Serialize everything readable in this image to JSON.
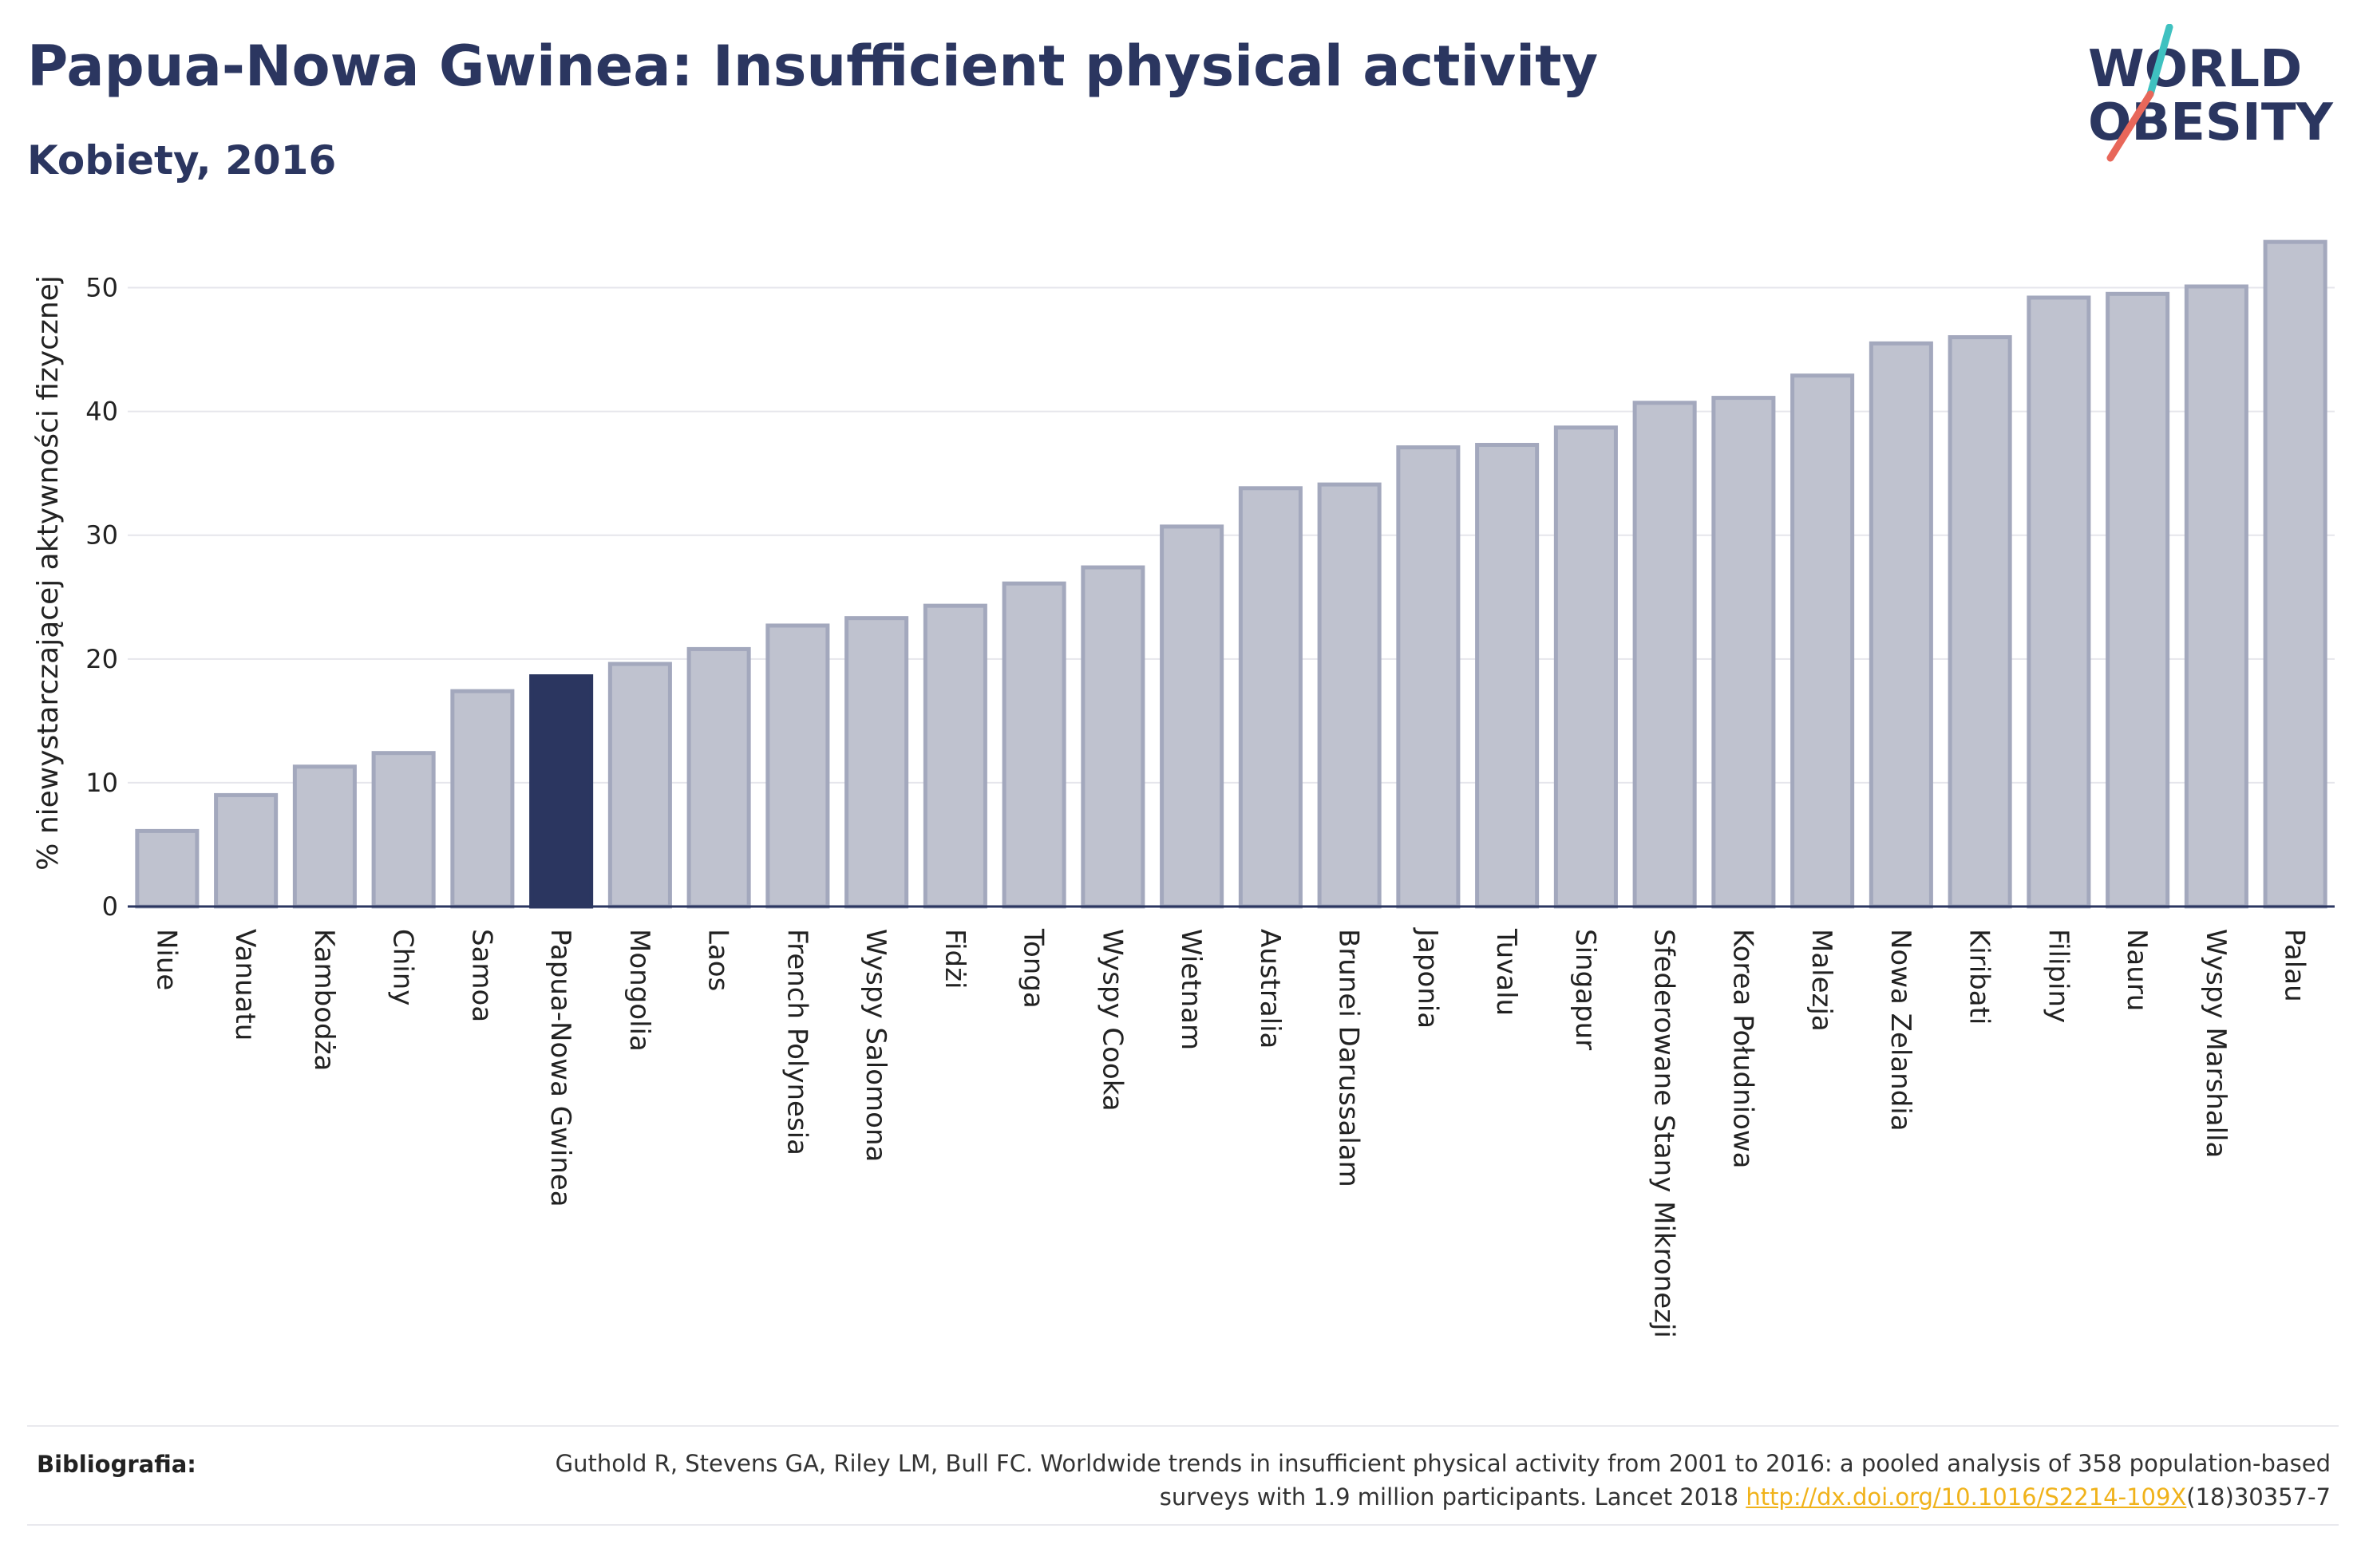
{
  "header": {
    "title": "Papua-Nowa Gwinea: Insufficient physical activity",
    "subtitle": "Kobiety, 2016"
  },
  "logo": {
    "line1": "WORLD",
    "line2": "OBESITY",
    "accent_colors": [
      "#3fc1c0",
      "#e8675a"
    ]
  },
  "chart_data": {
    "type": "bar",
    "ylabel": "% niewystarczającej aktywności fizycznej",
    "xlabel": "",
    "ylim": [
      0,
      55
    ],
    "yticks": [
      0,
      10,
      20,
      30,
      40,
      50
    ],
    "grid": true,
    "highlight": "Papua-Nowa Gwinea",
    "colors": {
      "bar": "#bfc2cf",
      "bar_border": "#a3a8bd",
      "highlight": "#2b3660",
      "axis": "#2b3660",
      "grid": "#e6e6ec"
    },
    "categories": [
      "Niue",
      "Vanuatu",
      "Kambodża",
      "Chiny",
      "Samoa",
      "Papua-Nowa Gwinea",
      "Mongolia",
      "Laos",
      "French Polynesia",
      "Wyspy Salomona",
      "Fidżi",
      "Tonga",
      "Wyspy Cooka",
      "Wietnam",
      "Australia",
      "Brunei Darussalam",
      "Japonia",
      "Tuvalu",
      "Singapur",
      "Sfederowane Stany Mikronezji",
      "Korea Południowa",
      "Malezja",
      "Nowa Zelandia",
      "Kiribati",
      "Filipiny",
      "Nauru",
      "Wyspy Marshalla",
      "Palau"
    ],
    "values": [
      6.1,
      9.0,
      11.3,
      12.4,
      17.4,
      18.6,
      19.6,
      20.8,
      22.7,
      23.3,
      24.3,
      26.1,
      27.4,
      30.7,
      33.8,
      34.1,
      37.1,
      37.3,
      38.7,
      40.7,
      41.1,
      42.9,
      45.5,
      46.0,
      49.2,
      49.5,
      50.1,
      53.7
    ]
  },
  "footer": {
    "label": "Bibliografia:",
    "citation_part1": "Guthold R, Stevens GA, Riley LM, Bull FC. Worldwide trends in insufficient physical activity from 2001 to 2016: a pooled analysis of 358 population-based surveys with 1.9 million participants. Lancet 2018 ",
    "link_text": "http://dx.doi.org/10.1016/S2214-109X",
    "citation_part2": "(18)30357-7"
  }
}
